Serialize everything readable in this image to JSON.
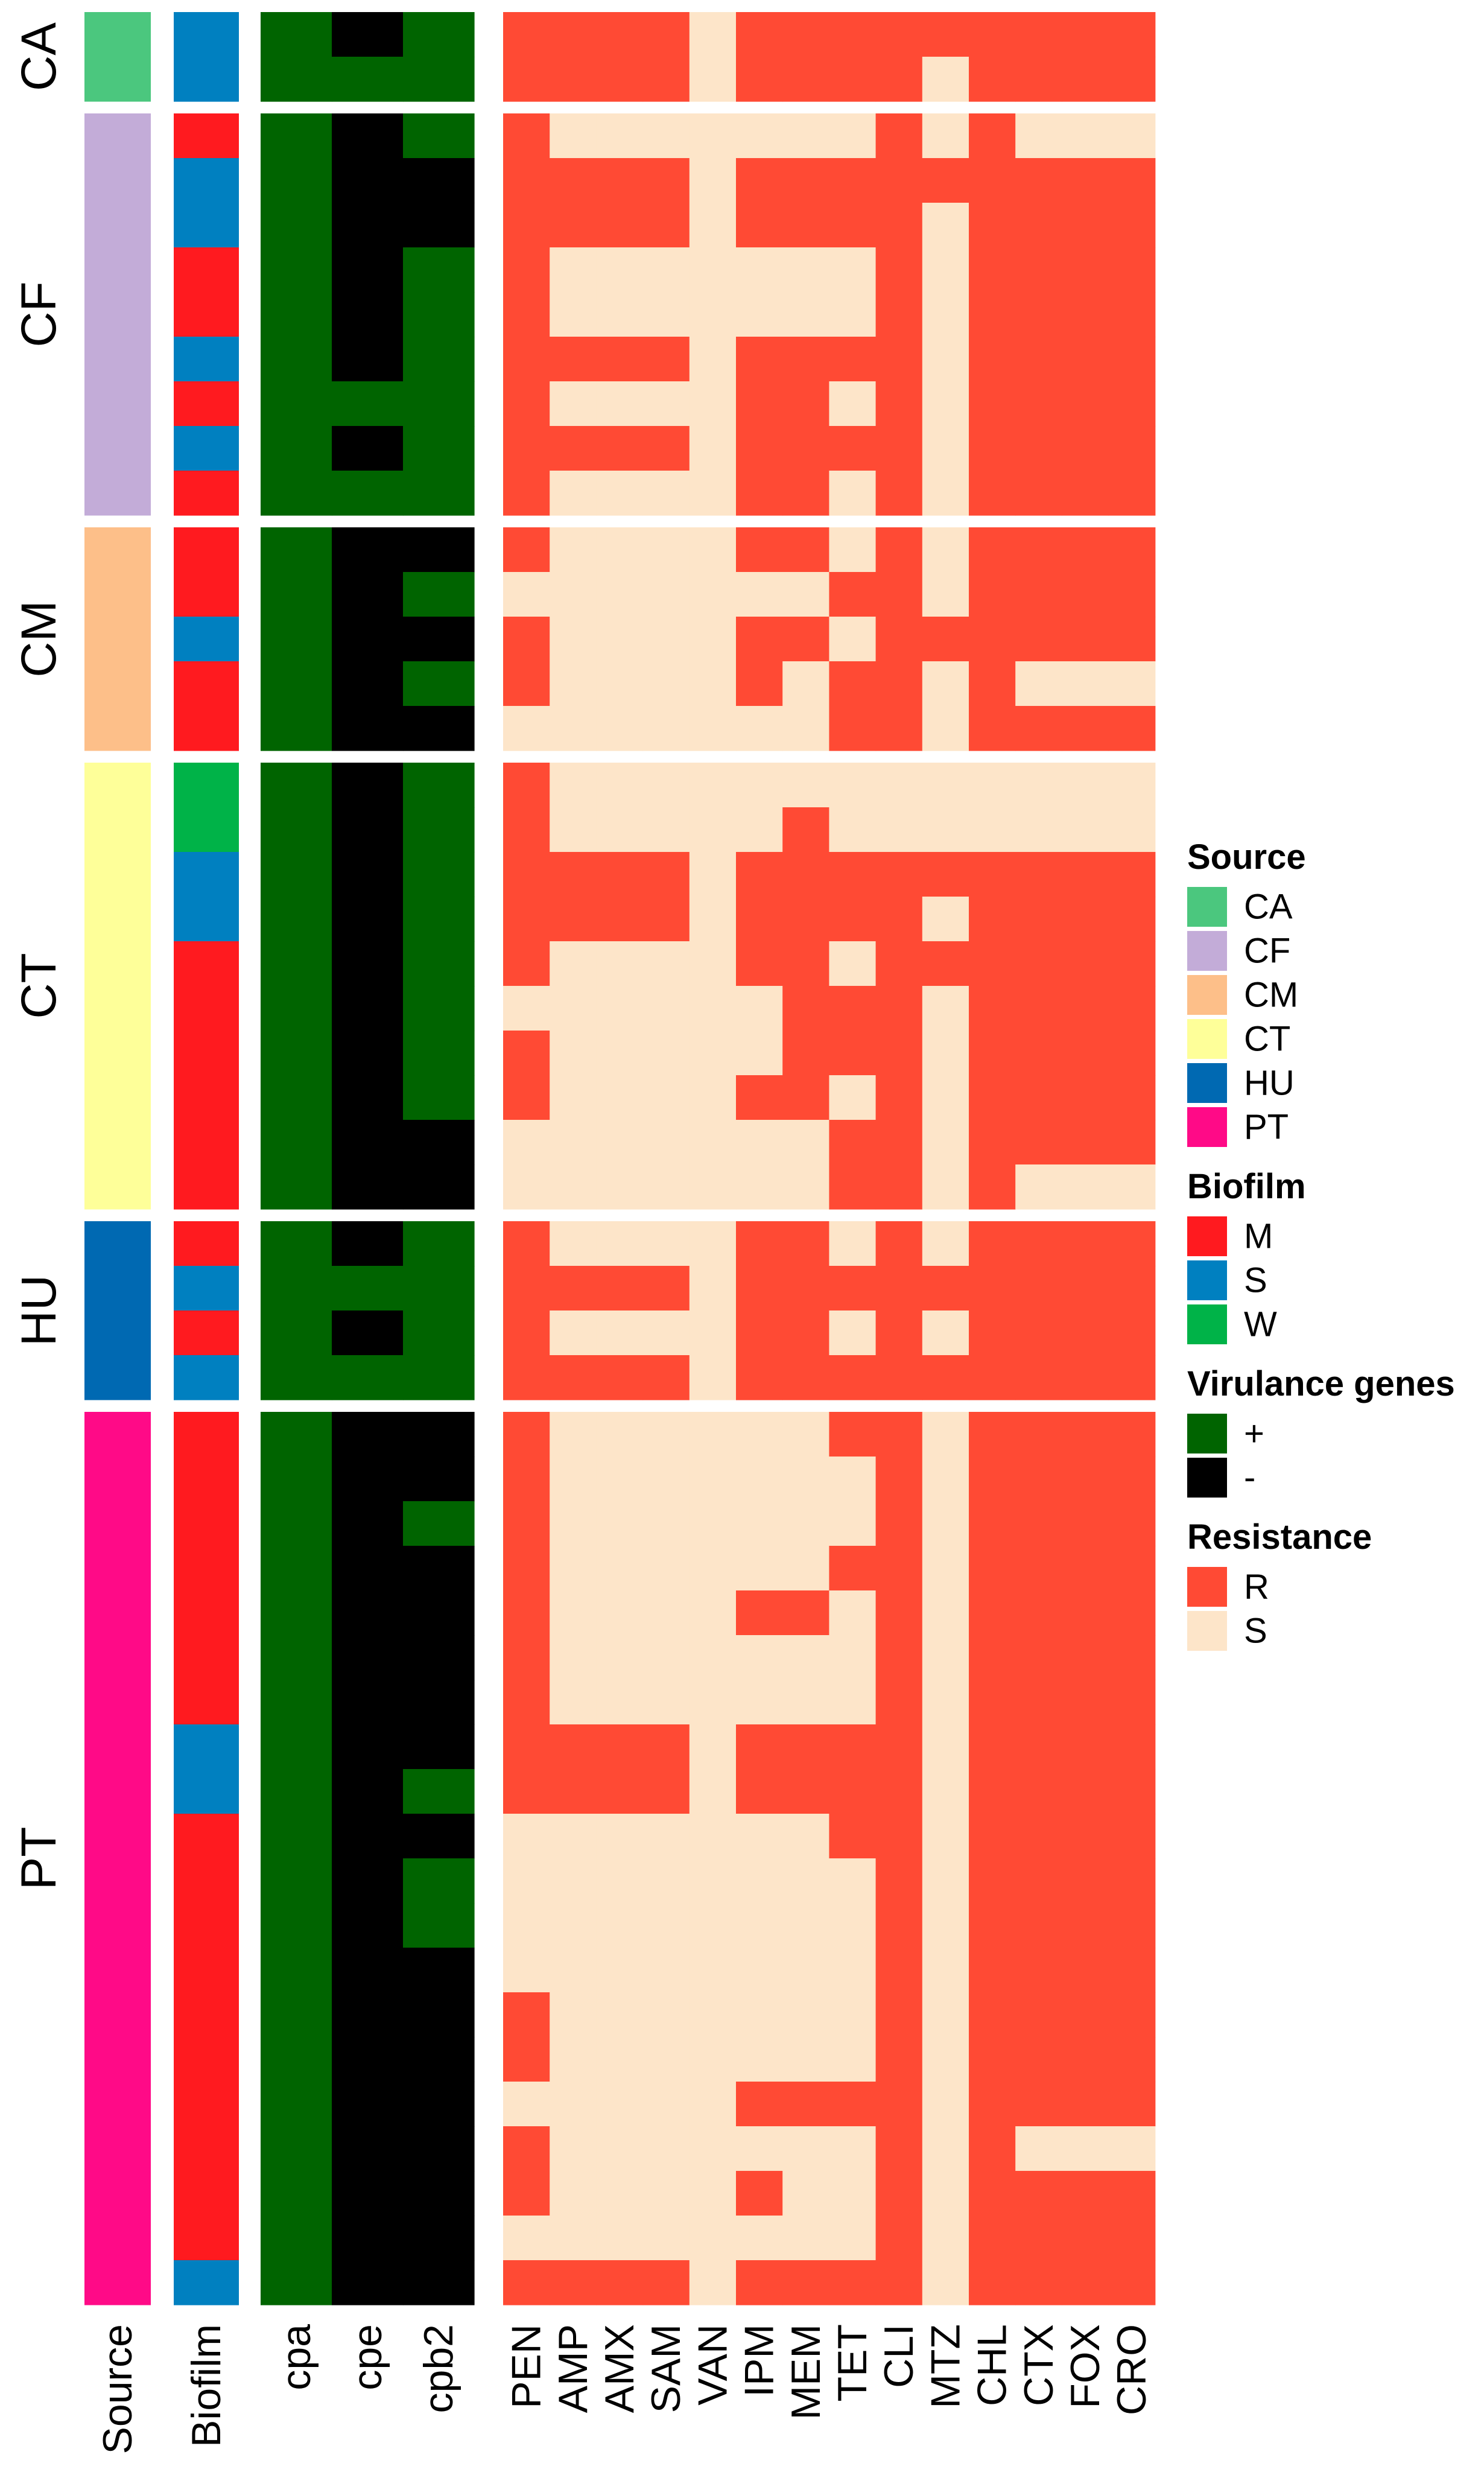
{
  "chart_data": {
    "type": "heatmap",
    "colors": {
      "source": {
        "CA": "#4BC77E",
        "CF": "#C3ACD8",
        "CM": "#FDBF89",
        "CT": "#FEFF99",
        "HU": "#0069B2",
        "PT": "#FF0A87"
      },
      "biofilm": {
        "M": "#FF1A1F",
        "S": "#0080C0",
        "W": "#00B348"
      },
      "virulence": {
        "+": "#006400",
        "-": "#000000"
      },
      "resistance": {
        "R": "#FF4A34",
        "S": "#FDE5C9"
      }
    },
    "annotation_columns": [
      "Source",
      "Biofilm"
    ],
    "virulence_columns": [
      "cpa",
      "cpe",
      "cpb2"
    ],
    "resistance_columns": [
      "PEN",
      "AMP",
      "AMX",
      "SAM",
      "VAN",
      "IPM",
      "MEM",
      "TET",
      "CLI",
      "MTZ",
      "CHL",
      "CTX",
      "FOX",
      "CRO"
    ],
    "groups": [
      {
        "name": "CA",
        "rows": [
          {
            "biofilm": "S",
            "vir": "+-+",
            "res": "RRRRSRRRRRRRRR"
          },
          {
            "biofilm": "S",
            "vir": "+++",
            "res": "RRRRSRRRRSRRRR"
          }
        ]
      },
      {
        "name": "CF",
        "rows": [
          {
            "biofilm": "M",
            "vir": "+-+",
            "res": "RSSSSSSSRSRSSS"
          },
          {
            "biofilm": "S",
            "vir": "+--",
            "res": "RRRRSRRRRRRRRR"
          },
          {
            "biofilm": "S",
            "vir": "+--",
            "res": "RRRRSRRRRSRRRR"
          },
          {
            "biofilm": "M",
            "vir": "+-+",
            "res": "RSSSSSSSRSRRRR"
          },
          {
            "biofilm": "M",
            "vir": "+-+",
            "res": "RSSSSSSSRSRRRR"
          },
          {
            "biofilm": "S",
            "vir": "+-+",
            "res": "RRRRSRRRRSRRRR"
          },
          {
            "biofilm": "M",
            "vir": "+++",
            "res": "RSSSSRRSRSRRRR"
          },
          {
            "biofilm": "S",
            "vir": "+-+",
            "res": "RRRRSRRRRSRRRR"
          },
          {
            "biofilm": "M",
            "vir": "+++",
            "res": "RSSSSRRSRSRRRR"
          }
        ]
      },
      {
        "name": "CM",
        "rows": [
          {
            "biofilm": "M",
            "vir": "+--",
            "res": "RSSSSRRSRSRRRR"
          },
          {
            "biofilm": "M",
            "vir": "+-+",
            "res": "SSSSSSSRRSRRRR"
          },
          {
            "biofilm": "S",
            "vir": "+--",
            "res": "RSSSSRRSRRRRRR"
          },
          {
            "biofilm": "M",
            "vir": "+-+",
            "res": "RSSSSRSRRSRSSS"
          },
          {
            "biofilm": "M",
            "vir": "+--",
            "res": "SSSSSSSRRSRRRR"
          }
        ]
      },
      {
        "name": "CT",
        "rows": [
          {
            "biofilm": "W",
            "vir": "+-+",
            "res": "RSSSSSSSSSSSSS"
          },
          {
            "biofilm": "W",
            "vir": "+-+",
            "res": "RSSSSSRSSSSSSS"
          },
          {
            "biofilm": "S",
            "vir": "+-+",
            "res": "RRRRSRRRRRRRRR"
          },
          {
            "biofilm": "S",
            "vir": "+-+",
            "res": "RRRRSRRRRSRRRR"
          },
          {
            "biofilm": "M",
            "vir": "+-+",
            "res": "RSSSSRRSRRRRRR"
          },
          {
            "biofilm": "M",
            "vir": "+-+",
            "res": "SSSSSSRRRSRRRR"
          },
          {
            "biofilm": "M",
            "vir": "+-+",
            "res": "RSSSSSRRRSRRRR"
          },
          {
            "biofilm": "M",
            "vir": "+-+",
            "res": "RSSSSRRSRSRRRR"
          },
          {
            "biofilm": "M",
            "vir": "+--",
            "res": "SSSSSSSRRSRRRR"
          },
          {
            "biofilm": "M",
            "vir": "+--",
            "res": "SSSSSSSRRSRSSS"
          }
        ]
      },
      {
        "name": "HU",
        "rows": [
          {
            "biofilm": "M",
            "vir": "+-+",
            "res": "RSSSSRRSRSRRRR"
          },
          {
            "biofilm": "S",
            "vir": "+++",
            "res": "RRRRSRRRRRRRRR"
          },
          {
            "biofilm": "M",
            "vir": "+-+",
            "res": "RSSSSRRSRSRRRR"
          },
          {
            "biofilm": "S",
            "vir": "+++",
            "res": "RRRRSRRRRRRRRR"
          }
        ]
      },
      {
        "name": "PT",
        "rows": [
          {
            "biofilm": "M",
            "vir": "+--",
            "res": "RSSSSSSRRSRRRR"
          },
          {
            "biofilm": "M",
            "vir": "+--",
            "res": "RSSSSSSSRSRRRR"
          },
          {
            "biofilm": "M",
            "vir": "+-+",
            "res": "RSSSSSSSRSRRRR"
          },
          {
            "biofilm": "M",
            "vir": "+--",
            "res": "RSSSSSSRRSRRRR"
          },
          {
            "biofilm": "M",
            "vir": "+--",
            "res": "RSSSSRRSRSRRRR"
          },
          {
            "biofilm": "M",
            "vir": "+--",
            "res": "RSSSSSSSRSRRRR"
          },
          {
            "biofilm": "M",
            "vir": "+--",
            "res": "RSSSSSSSRSRRRR"
          },
          {
            "biofilm": "S",
            "vir": "+--",
            "res": "RRRRSRRRRSRRRR"
          },
          {
            "biofilm": "S",
            "vir": "+-+",
            "res": "RRRRSRRRRSRRRR"
          },
          {
            "biofilm": "M",
            "vir": "+--",
            "res": "SSSSSSSRRSRRRR"
          },
          {
            "biofilm": "M",
            "vir": "+-+",
            "res": "SSSSSSSSRSRRRR"
          },
          {
            "biofilm": "M",
            "vir": "+-+",
            "res": "SSSSSSSSRSRRRR"
          },
          {
            "biofilm": "M",
            "vir": "+--",
            "res": "SSSSSSSSRSRRRR"
          },
          {
            "biofilm": "M",
            "vir": "+--",
            "res": "RSSSSSSSRSRRRR"
          },
          {
            "biofilm": "M",
            "vir": "+--",
            "res": "RSSSSSSSRSRRRR"
          },
          {
            "biofilm": "M",
            "vir": "+--",
            "res": "SSSSSRRRRSRRRR"
          },
          {
            "biofilm": "M",
            "vir": "+--",
            "res": "RSSSSSSSRSRSSS"
          },
          {
            "biofilm": "M",
            "vir": "+--",
            "res": "RSSSSRSSRSRRRR"
          },
          {
            "biofilm": "M",
            "vir": "+--",
            "res": "SSSSSSSSRSRRRR"
          },
          {
            "biofilm": "S",
            "vir": "+--",
            "res": "RRRRSRRRRSRRRR"
          }
        ]
      }
    ],
    "legend": {
      "position": "right",
      "sections": [
        {
          "title": "Source",
          "key": "source",
          "entries": [
            "CA",
            "CF",
            "CM",
            "CT",
            "HU",
            "PT"
          ]
        },
        {
          "title": "Biofilm",
          "key": "biofilm",
          "entries": [
            "M",
            "S",
            "W"
          ]
        },
        {
          "title": "Virulance genes",
          "key": "virulence",
          "entries": [
            "+",
            "-"
          ]
        },
        {
          "title": "Resistance",
          "key": "resistance",
          "entries": [
            "R",
            "S"
          ]
        }
      ]
    }
  }
}
